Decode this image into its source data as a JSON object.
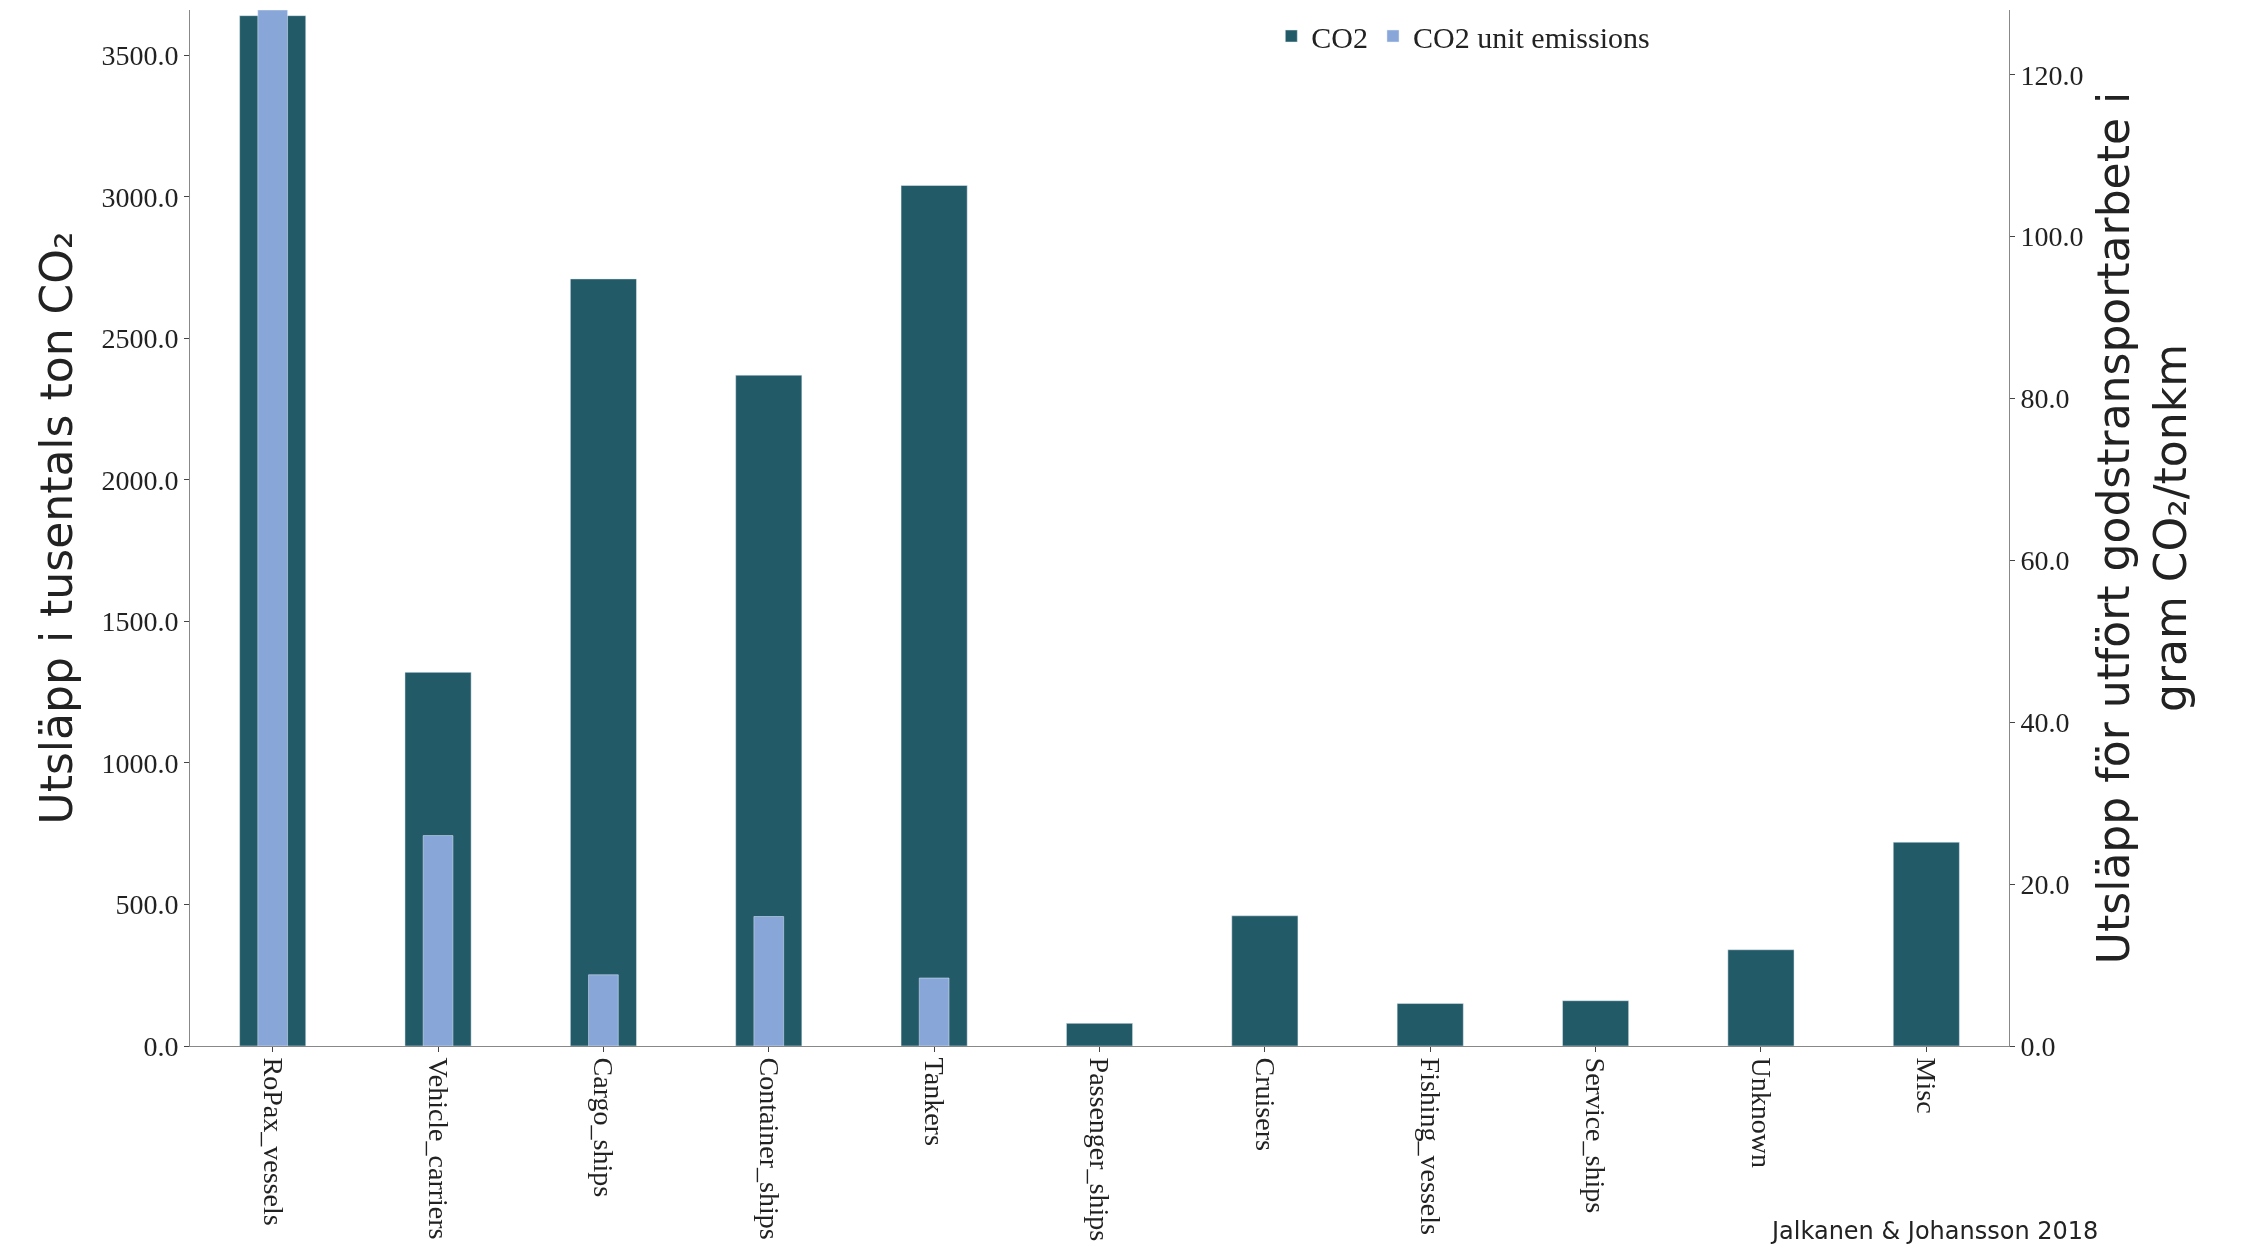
{
  "chart_data": {
    "type": "bar",
    "categories": [
      "RoPax_vessels",
      "Vehicle_carriers",
      "Cargo_ships",
      "Container_ships",
      "Tankers",
      "Passenger_ships",
      "Cruisers",
      "Fishing_vessels",
      "Service_ships",
      "Unknown",
      "Misc"
    ],
    "series": [
      {
        "name": "CO2",
        "color": "#235a68",
        "values": [
          3640,
          1320,
          2710,
          2370,
          3040,
          80,
          460,
          150,
          160,
          340,
          720
        ]
      },
      {
        "name": "CO2 unit emissions",
        "color": "#88a6d8",
        "axis": "y2",
        "values": [
          128,
          26,
          8.8,
          16,
          8.4,
          null,
          null,
          null,
          null,
          null,
          null
        ]
      }
    ],
    "ylabel": "Utsläpp i tusentals ton CO₂",
    "y2label": "Utsläpp för utfört godstransportarbete i\ngram CO₂/tonkm",
    "ylim": [
      0,
      3660
    ],
    "yticks": [
      {
        "value": 0,
        "label": "0.0"
      },
      {
        "value": 500,
        "label": "500.0"
      },
      {
        "value": 1000,
        "label": "1000.0"
      },
      {
        "value": 1500,
        "label": "1500.0"
      },
      {
        "value": 2000,
        "label": "2000.0"
      },
      {
        "value": 2500,
        "label": "2500.0"
      },
      {
        "value": 3000,
        "label": "3000.0"
      },
      {
        "value": 3500,
        "label": "3500.0"
      }
    ],
    "y2lim": [
      0,
      128
    ],
    "y2ticks": [
      {
        "value": 0,
        "label": "0.0"
      },
      {
        "value": 20,
        "label": "20.0"
      },
      {
        "value": 40,
        "label": "40.0"
      },
      {
        "value": 60,
        "label": "60.0"
      },
      {
        "value": 80,
        "label": "80.0"
      },
      {
        "value": 100,
        "label": "100.0"
      },
      {
        "value": 120,
        "label": "120.0"
      }
    ],
    "annotations": [
      "Jalkanen & Johansson 2018"
    ],
    "legend": "top"
  }
}
